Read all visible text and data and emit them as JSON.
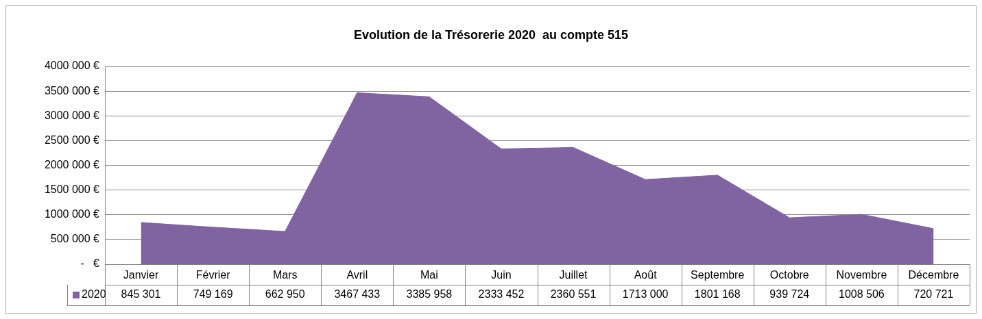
{
  "chart_data": {
    "type": "area",
    "title": "Evolution de la Trésorerie 2020  au compte 515",
    "categories": [
      "Janvier",
      "Février",
      "Mars",
      "Avril",
      "Mai",
      "Juin",
      "Juillet",
      "Août",
      "Septembre",
      "Octobre",
      "Novembre",
      "Décembre"
    ],
    "series": [
      {
        "name": "2020",
        "color": "#8064a2",
        "values": [
          845301,
          749169,
          662950,
          3467433,
          3385958,
          2333452,
          2360551,
          1713000,
          1801168,
          939724,
          1008506,
          720721
        ],
        "value_labels": [
          "845 301",
          "749 169",
          "662 950",
          "3467 433",
          "3385 958",
          "2333 452",
          "2360 551",
          "1713 000",
          "1801 168",
          "939 724",
          "1008 506",
          "720 721"
        ]
      }
    ],
    "ylim": [
      0,
      4000000
    ],
    "yticks": [
      {
        "value": 0,
        "label": "-   €"
      },
      {
        "value": 500000,
        "label": "500 000 €"
      },
      {
        "value": 1000000,
        "label": "1000 000 €"
      },
      {
        "value": 1500000,
        "label": "1500 000 €"
      },
      {
        "value": 2000000,
        "label": "2000 000 €"
      },
      {
        "value": 2500000,
        "label": "2500 000 €"
      },
      {
        "value": 3000000,
        "label": "3000 000 €"
      },
      {
        "value": 3500000,
        "label": "3500 000 €"
      },
      {
        "value": 4000000,
        "label": "4000 000 €"
      }
    ],
    "grid": "y"
  }
}
